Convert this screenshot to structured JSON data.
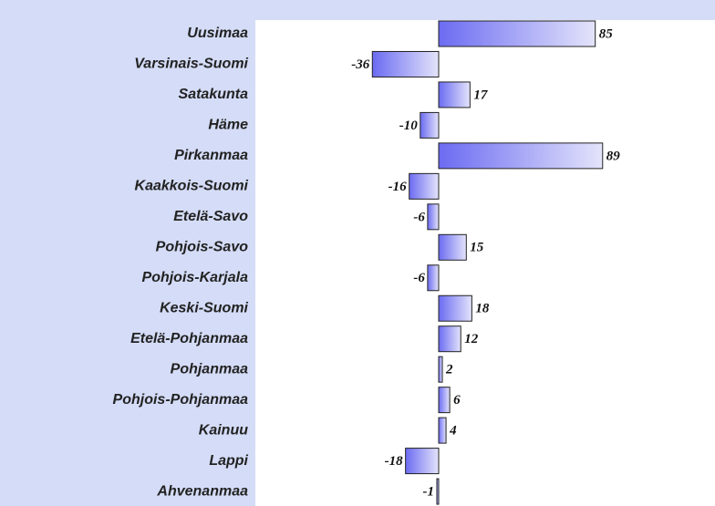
{
  "chart_data": {
    "type": "bar",
    "orientation": "horizontal",
    "categories": [
      "Uusimaa",
      "Varsinais-Suomi",
      "Satakunta",
      "Häme",
      "Pirkanmaa",
      "Kaakkois-Suomi",
      "Etelä-Savo",
      "Pohjois-Savo",
      "Pohjois-Karjala",
      "Keski-Suomi",
      "Etelä-Pohjanmaa",
      "Pohjanmaa",
      "Pohjois-Pohjanmaa",
      "Kainuu",
      "Lappi",
      "Ahvenanmaa"
    ],
    "values": [
      85,
      -36,
      17,
      -10,
      89,
      -16,
      -6,
      15,
      -6,
      18,
      12,
      2,
      6,
      4,
      -18,
      -1
    ],
    "color": "#6b6bf2"
  }
}
